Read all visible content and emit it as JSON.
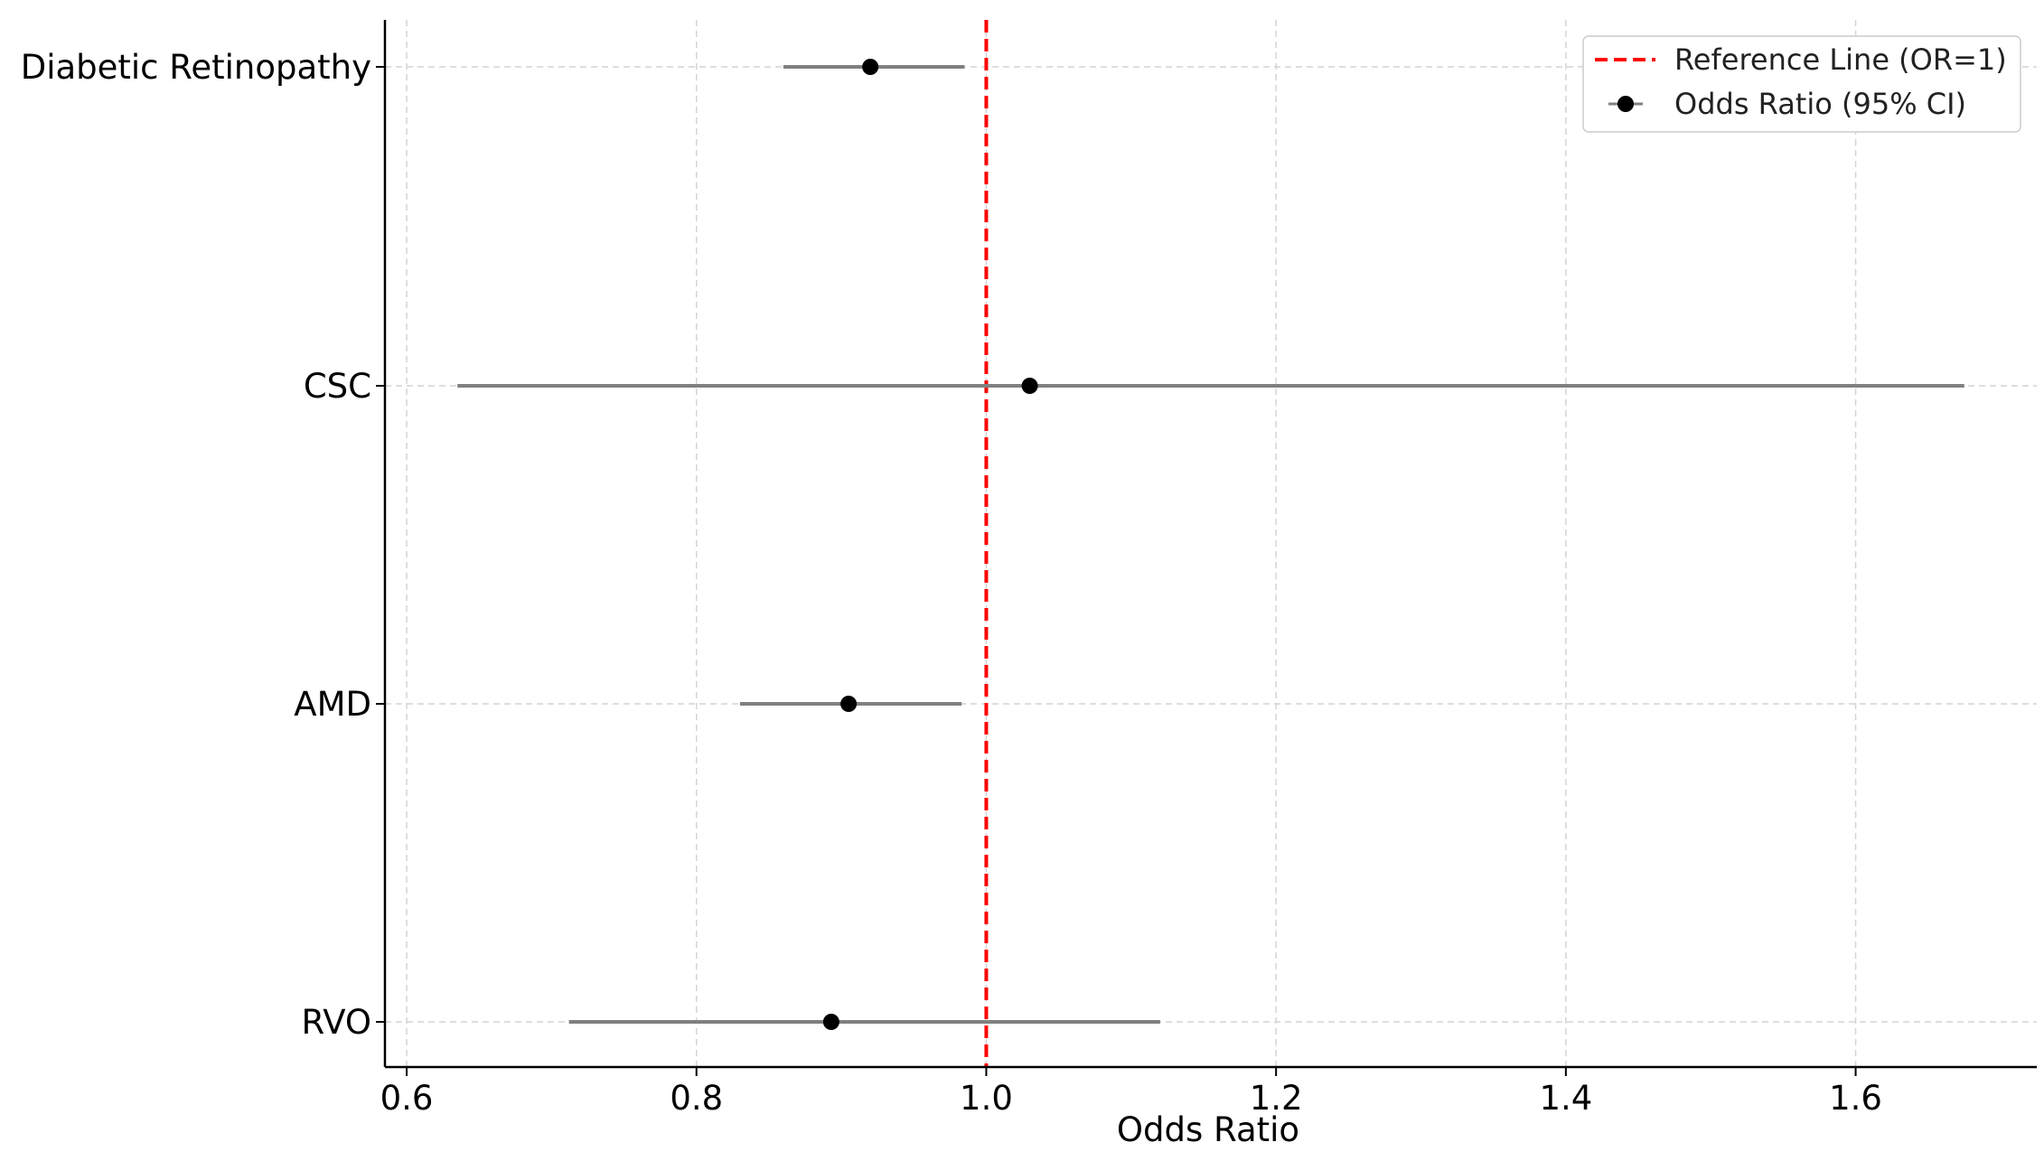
{
  "chart_data": {
    "type": "forest",
    "title": "",
    "xlabel": "Odds Ratio",
    "ylabel": "",
    "xlim": [
      0.585,
      1.725
    ],
    "xticks": [
      0.6,
      0.8,
      1.0,
      1.2,
      1.4,
      1.6
    ],
    "xtick_labels": [
      "0.6",
      "0.8",
      "1.0",
      "1.2",
      "1.4",
      "1.6"
    ],
    "grid": true,
    "legend_position": "top-right",
    "categories": [
      "Diabetic Retinopathy",
      "CSC",
      "AMD",
      "RVO"
    ],
    "series": [
      {
        "name": "Odds Ratio (95% CI)",
        "marker": "circle",
        "color": "#000000",
        "ci_color": "#808080",
        "points": [
          {
            "label": "Diabetic Retinopathy",
            "or": 0.92,
            "lower": 0.86,
            "upper": 0.985
          },
          {
            "label": "CSC",
            "or": 1.03,
            "lower": 0.635,
            "upper": 1.675
          },
          {
            "label": "AMD",
            "or": 0.905,
            "lower": 0.83,
            "upper": 0.983
          },
          {
            "label": "RVO",
            "or": 0.893,
            "lower": 0.712,
            "upper": 1.12
          }
        ]
      }
    ],
    "reference_line": {
      "name": "Reference Line (OR=1)",
      "x": 1.0,
      "color": "#ff0000",
      "style": "dashed"
    }
  }
}
